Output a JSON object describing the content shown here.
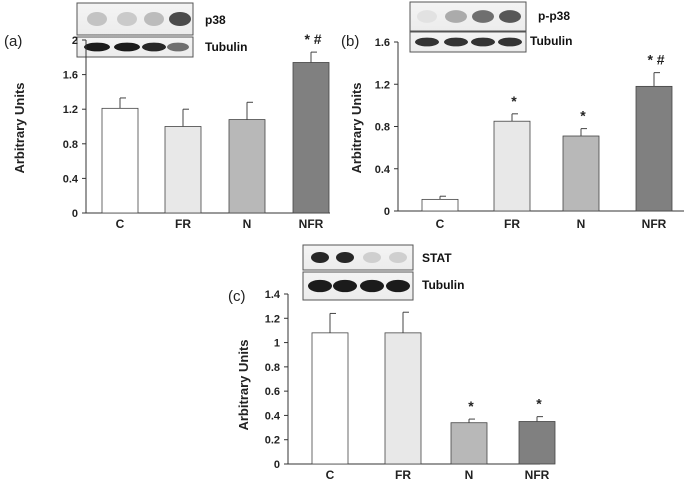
{
  "chart_data": [
    {
      "type": "bar",
      "panel": "(a)",
      "ylabel": "Arbitrary Units",
      "ylim": [
        0,
        2
      ],
      "yticks": [
        "0",
        "0.4",
        "0.8",
        "1.2",
        "1.6",
        "2"
      ],
      "categories": [
        "C",
        "FR",
        "N",
        "NFR"
      ],
      "values": [
        1.21,
        1.0,
        1.08,
        1.74
      ],
      "errors": [
        0.12,
        0.2,
        0.2,
        0.12
      ],
      "significance": [
        "",
        "",
        "",
        "* #"
      ],
      "bar_colors": [
        "#ffffff",
        "#e8e8e8",
        "#b8b8b8",
        "#808080"
      ],
      "blot_labels": [
        "p38",
        "Tubulin"
      ]
    },
    {
      "type": "bar",
      "panel": "(b)",
      "ylabel": "Arbitrary Units",
      "ylim": [
        0,
        1.6
      ],
      "yticks": [
        "0",
        "0.4",
        "0.8",
        "1.2",
        "1.6"
      ],
      "categories": [
        "C",
        "FR",
        "N",
        "NFR"
      ],
      "values": [
        0.11,
        0.85,
        0.71,
        1.18
      ],
      "errors": [
        0.03,
        0.07,
        0.07,
        0.13
      ],
      "significance": [
        "",
        "*",
        "*",
        "* #"
      ],
      "bar_colors": [
        "#ffffff",
        "#e8e8e8",
        "#b8b8b8",
        "#808080"
      ],
      "blot_labels": [
        "p-p38",
        "Tubulin"
      ]
    },
    {
      "type": "bar",
      "panel": "(c)",
      "ylabel": "Arbitrary Units",
      "ylim": [
        0,
        1.4
      ],
      "yticks": [
        "0",
        "0.2",
        "0.4",
        "0.6",
        "0.8",
        "1",
        "1.2",
        "1.4"
      ],
      "categories": [
        "C",
        "FR",
        "N",
        "NFR"
      ],
      "values": [
        1.08,
        1.08,
        0.34,
        0.35
      ],
      "errors": [
        0.16,
        0.17,
        0.03,
        0.04
      ],
      "significance": [
        "",
        "",
        "*",
        "*"
      ],
      "bar_colors": [
        "#ffffff",
        "#e8e8e8",
        "#b8b8b8",
        "#808080"
      ],
      "blot_labels": [
        "STAT",
        "Tubulin"
      ]
    }
  ]
}
